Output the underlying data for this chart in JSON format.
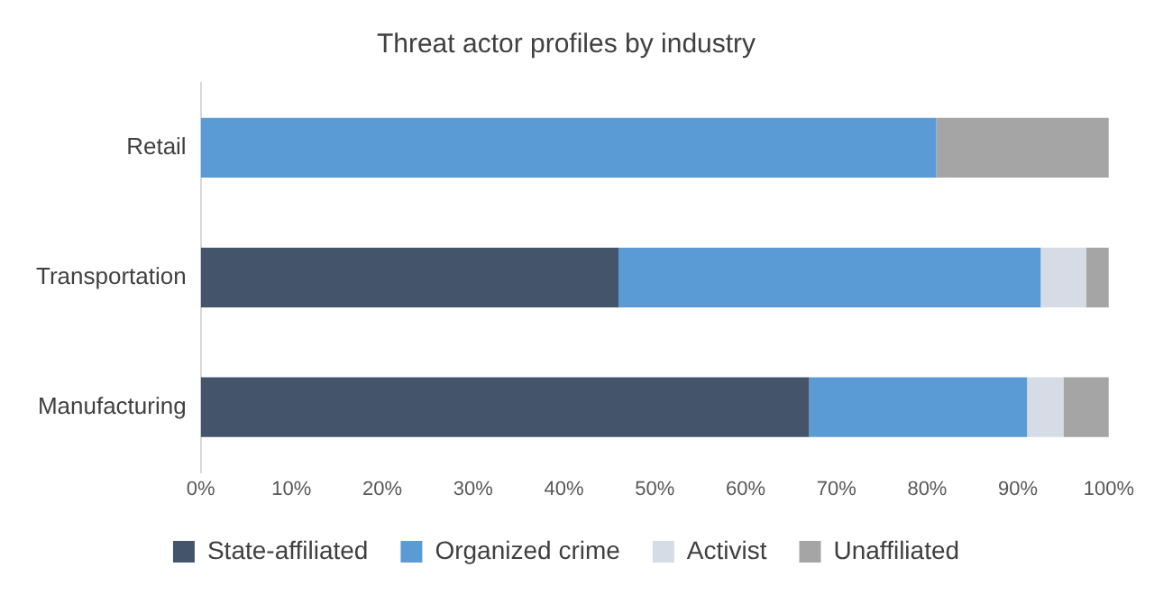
{
  "chart_data": {
    "type": "bar",
    "orientation": "horizontal",
    "stacked": true,
    "title": "Threat actor profiles by industry",
    "categories": [
      "Retail",
      "Transportation",
      "Manufacturing"
    ],
    "series": [
      {
        "name": "State-affiliated",
        "color": "#44546a",
        "values": [
          0,
          46,
          67
        ]
      },
      {
        "name": "Organized crime",
        "color": "#5b9bd5",
        "values": [
          81,
          46.5,
          24
        ]
      },
      {
        "name": "Activist",
        "color": "#d6dce5",
        "values": [
          0,
          5,
          4
        ]
      },
      {
        "name": "Unaffiliated",
        "color": "#a5a5a5",
        "values": [
          19,
          2.5,
          5
        ]
      }
    ],
    "xlim": [
      0,
      100
    ],
    "xticks": [
      {
        "value": 0,
        "label": "0%"
      },
      {
        "value": 10,
        "label": "10%"
      },
      {
        "value": 20,
        "label": "20%"
      },
      {
        "value": 30,
        "label": "30%"
      },
      {
        "value": 40,
        "label": "40%"
      },
      {
        "value": 50,
        "label": "50%"
      },
      {
        "value": 60,
        "label": "60%"
      },
      {
        "value": 70,
        "label": "70%"
      },
      {
        "value": 80,
        "label": "80%"
      },
      {
        "value": 90,
        "label": "90%"
      },
      {
        "value": 100,
        "label": "100%"
      }
    ],
    "grid": false,
    "legend": "bottom"
  }
}
